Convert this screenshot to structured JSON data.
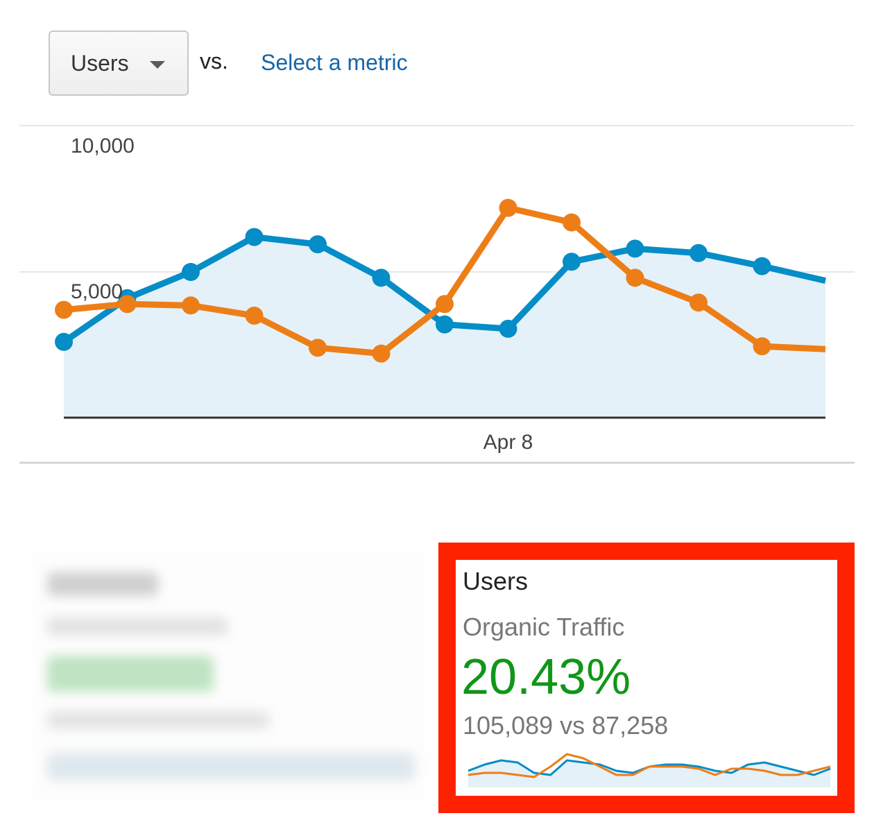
{
  "controls": {
    "metric_select": "Users",
    "vs_label": "vs.",
    "select_metric_link": "Select a metric"
  },
  "colors": {
    "series_primary": "#058dc7",
    "series_compare": "#ed7e17",
    "area_fill": "#e5f1f8",
    "positive": "#109618",
    "highlight_border": "#ff2200",
    "link": "#1565a8"
  },
  "chart_data": [
    {
      "type": "line",
      "y_tick_labels": [
        "10,000",
        "5,000"
      ],
      "x_tick_labels": [
        "Apr 8"
      ],
      "ylim": [
        0,
        10000
      ],
      "grid": true,
      "series": [
        {
          "values": [
            2600,
            4100,
            5000,
            6200,
            5950,
            4800,
            3200,
            3050,
            5350,
            5800,
            5650,
            5200,
            4700
          ]
        },
        {
          "values": [
            3700,
            3900,
            3850,
            3500,
            2400,
            2200,
            3900,
            7200,
            6700,
            4800,
            3950,
            2450,
            2350
          ]
        }
      ],
      "highlight_index": 7
    },
    {
      "type": "line",
      "series": [
        {
          "values": [
            4,
            5.5,
            6.5,
            6,
            3.5,
            3,
            6.5,
            6,
            5.5,
            4,
            3.5,
            5,
            5.5,
            5.5,
            5,
            4,
            3.5,
            5.5,
            6,
            5,
            4,
            3,
            4.5
          ]
        },
        {
          "values": [
            3,
            3.5,
            3.5,
            3,
            2.5,
            5,
            8,
            7,
            5,
            3,
            3,
            5,
            5,
            5,
            4.5,
            3,
            4.5,
            4.5,
            4,
            3,
            3,
            4,
            5
          ]
        }
      ]
    }
  ],
  "scorecard": {
    "title": "Users",
    "segment": "Organic Traffic",
    "change": "20.43%",
    "comparison": "105,089 vs 87,258"
  }
}
